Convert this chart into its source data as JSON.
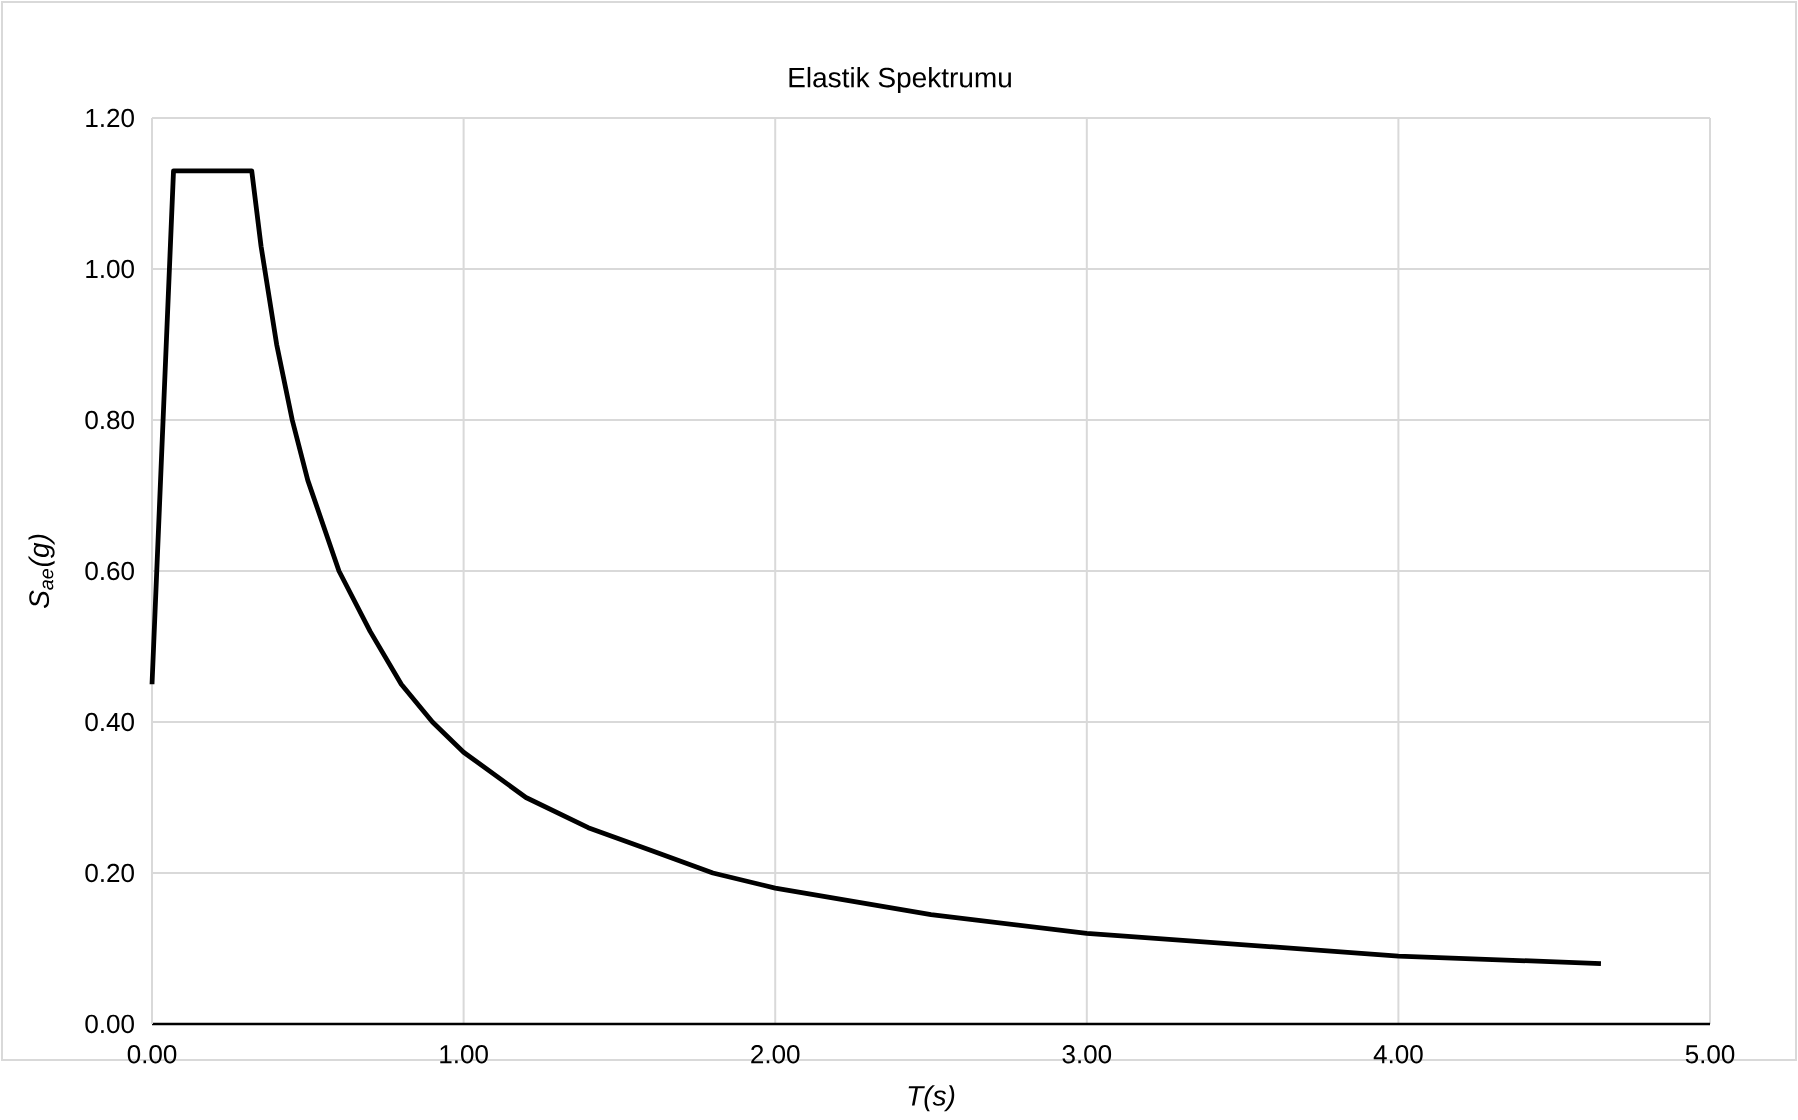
{
  "chart_data": {
    "type": "line",
    "title": "Elastik Spektrumu",
    "xlabel": "T(s)",
    "ylabel": "S$_{ae}$(g)",
    "x": [
      0,
      0.069,
      0.32,
      0.35,
      0.4,
      0.45,
      0.5,
      0.6,
      0.7,
      0.8,
      0.9,
      1.0,
      1.2,
      1.4,
      1.6,
      1.8,
      2.0,
      2.5,
      3.0,
      3.5,
      4.0,
      4.65
    ],
    "series": [
      {
        "color": "#000000",
        "values": [
          0.45,
          1.13,
          1.13,
          1.03,
          0.9,
          0.8,
          0.72,
          0.6,
          0.52,
          0.45,
          0.4,
          0.36,
          0.3,
          0.26,
          0.23,
          0.2,
          0.18,
          0.145,
          0.12,
          0.105,
          0.09,
          0.08
        ]
      }
    ],
    "xlim": [
      0,
      5
    ],
    "ylim": [
      0,
      1.2
    ],
    "xticks": [
      {
        "value": 0,
        "label": "0.00"
      },
      {
        "value": 1,
        "label": "1.00"
      },
      {
        "value": 2,
        "label": "2.00"
      },
      {
        "value": 3,
        "label": "3.00"
      },
      {
        "value": 4,
        "label": "4.00"
      },
      {
        "value": 5,
        "label": "5.00"
      }
    ],
    "yticks": [
      {
        "value": 0,
        "label": "0.00"
      },
      {
        "value": 0.2,
        "label": "0.20"
      },
      {
        "value": 0.4,
        "label": "0.40"
      },
      {
        "value": 0.6,
        "label": "0.60"
      },
      {
        "value": 0.8,
        "label": "0.80"
      },
      {
        "value": 1.0,
        "label": "1.00"
      },
      {
        "value": 1.2,
        "label": "1.20"
      }
    ],
    "grid": true,
    "legend": false,
    "marker": "none",
    "line_style": "solid"
  }
}
